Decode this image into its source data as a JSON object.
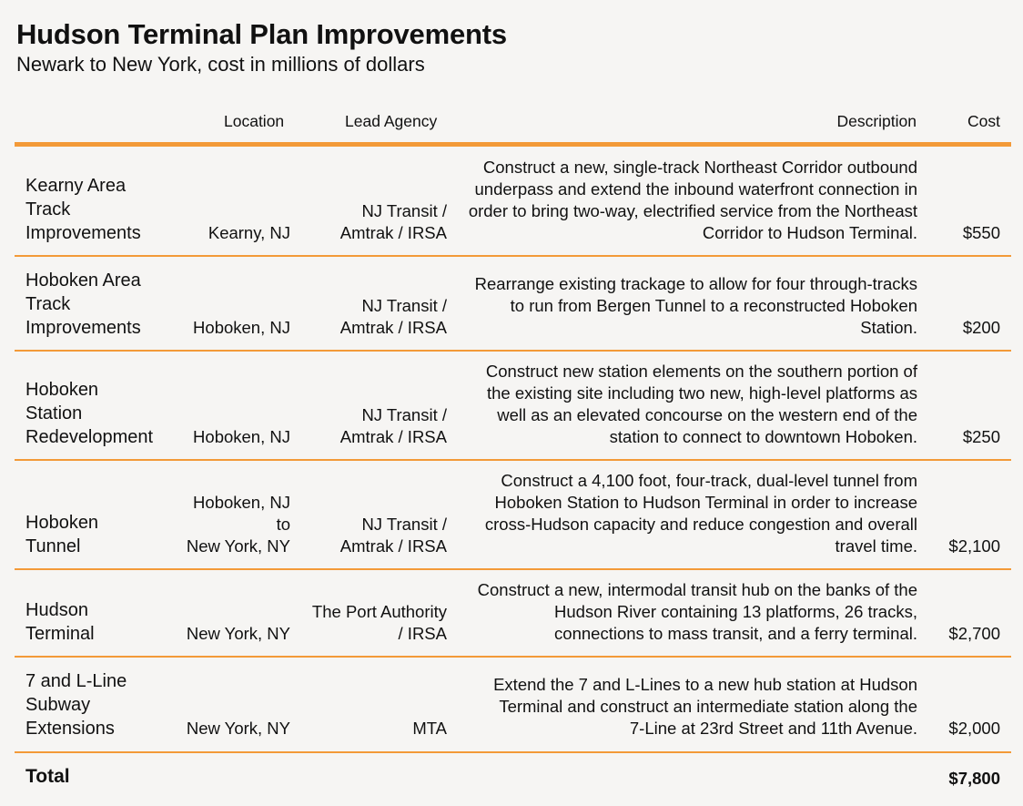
{
  "title": "Hudson Terminal Plan Improvements",
  "subtitle": "Newark to New York, cost in millions of dollars",
  "headers": {
    "location": "Location",
    "agency": "Lead Agency",
    "description": "Description",
    "cost": "Cost"
  },
  "rows": [
    {
      "name": [
        "Kearny Area",
        "Track",
        "Improvements"
      ],
      "location": [
        "Kearny, NJ"
      ],
      "agency": [
        "NJ Transit /",
        "Amtrak / IRSA"
      ],
      "description": [
        "Construct a new, single-track Northeast Corridor outbound",
        "underpass and extend the inbound waterfront connection in",
        "order to bring two-way, electrified service from the Northeast",
        "Corridor to Hudson Terminal."
      ],
      "cost": "$550"
    },
    {
      "name": [
        "Hoboken Area",
        "Track",
        "Improvements"
      ],
      "location": [
        "Hoboken, NJ"
      ],
      "agency": [
        "NJ Transit /",
        "Amtrak / IRSA"
      ],
      "description": [
        "Rearrange existing trackage to allow for four through-tracks",
        "to run from Bergen Tunnel to a reconstructed Hoboken",
        "Station."
      ],
      "cost": "$200"
    },
    {
      "name": [
        "Hoboken",
        "Station",
        "Redevelopment"
      ],
      "location": [
        "Hoboken, NJ"
      ],
      "agency": [
        "NJ Transit /",
        "Amtrak / IRSA"
      ],
      "description": [
        "Construct new station elements on the southern portion of",
        "the existing site including two new, high-level platforms as",
        "well as an elevated concourse on the western end of the",
        "station to connect to downtown Hoboken."
      ],
      "cost": "$250"
    },
    {
      "name": [
        "Hoboken",
        "Tunnel"
      ],
      "location": [
        "Hoboken, NJ",
        "to",
        "New York, NY"
      ],
      "agency": [
        "NJ Transit /",
        "Amtrak / IRSA"
      ],
      "description": [
        "Construct a 4,100 foot, four-track, dual-level tunnel from",
        "Hoboken Station to Hudson Terminal in order to increase",
        "cross-Hudson capacity and reduce congestion and overall",
        "travel time."
      ],
      "cost": "$2,100"
    },
    {
      "name": [
        "Hudson",
        "Terminal"
      ],
      "location": [
        "New York, NY"
      ],
      "agency": [
        "The Port Authority",
        "/ IRSA"
      ],
      "description": [
        "Construct a new, intermodal transit hub on the banks of the",
        "Hudson River containing 13 platforms, 26 tracks,",
        "connections to mass transit, and a ferry terminal."
      ],
      "cost": "$2,700"
    },
    {
      "name": [
        "7 and L-Line",
        "Subway",
        "Extensions"
      ],
      "location": [
        "New York, NY"
      ],
      "agency": [
        "MTA"
      ],
      "description": [
        "Extend the 7 and L-Lines to a new hub station at Hudson",
        "Terminal and construct an intermediate station along the",
        "7-Line at 23rd Street and 11th Avenue."
      ],
      "cost": "$2,000"
    }
  ],
  "total": {
    "label": "Total",
    "value": "$7,800"
  },
  "colors": {
    "accent_rule": "#f39a38",
    "background": "#f6f5f3"
  }
}
